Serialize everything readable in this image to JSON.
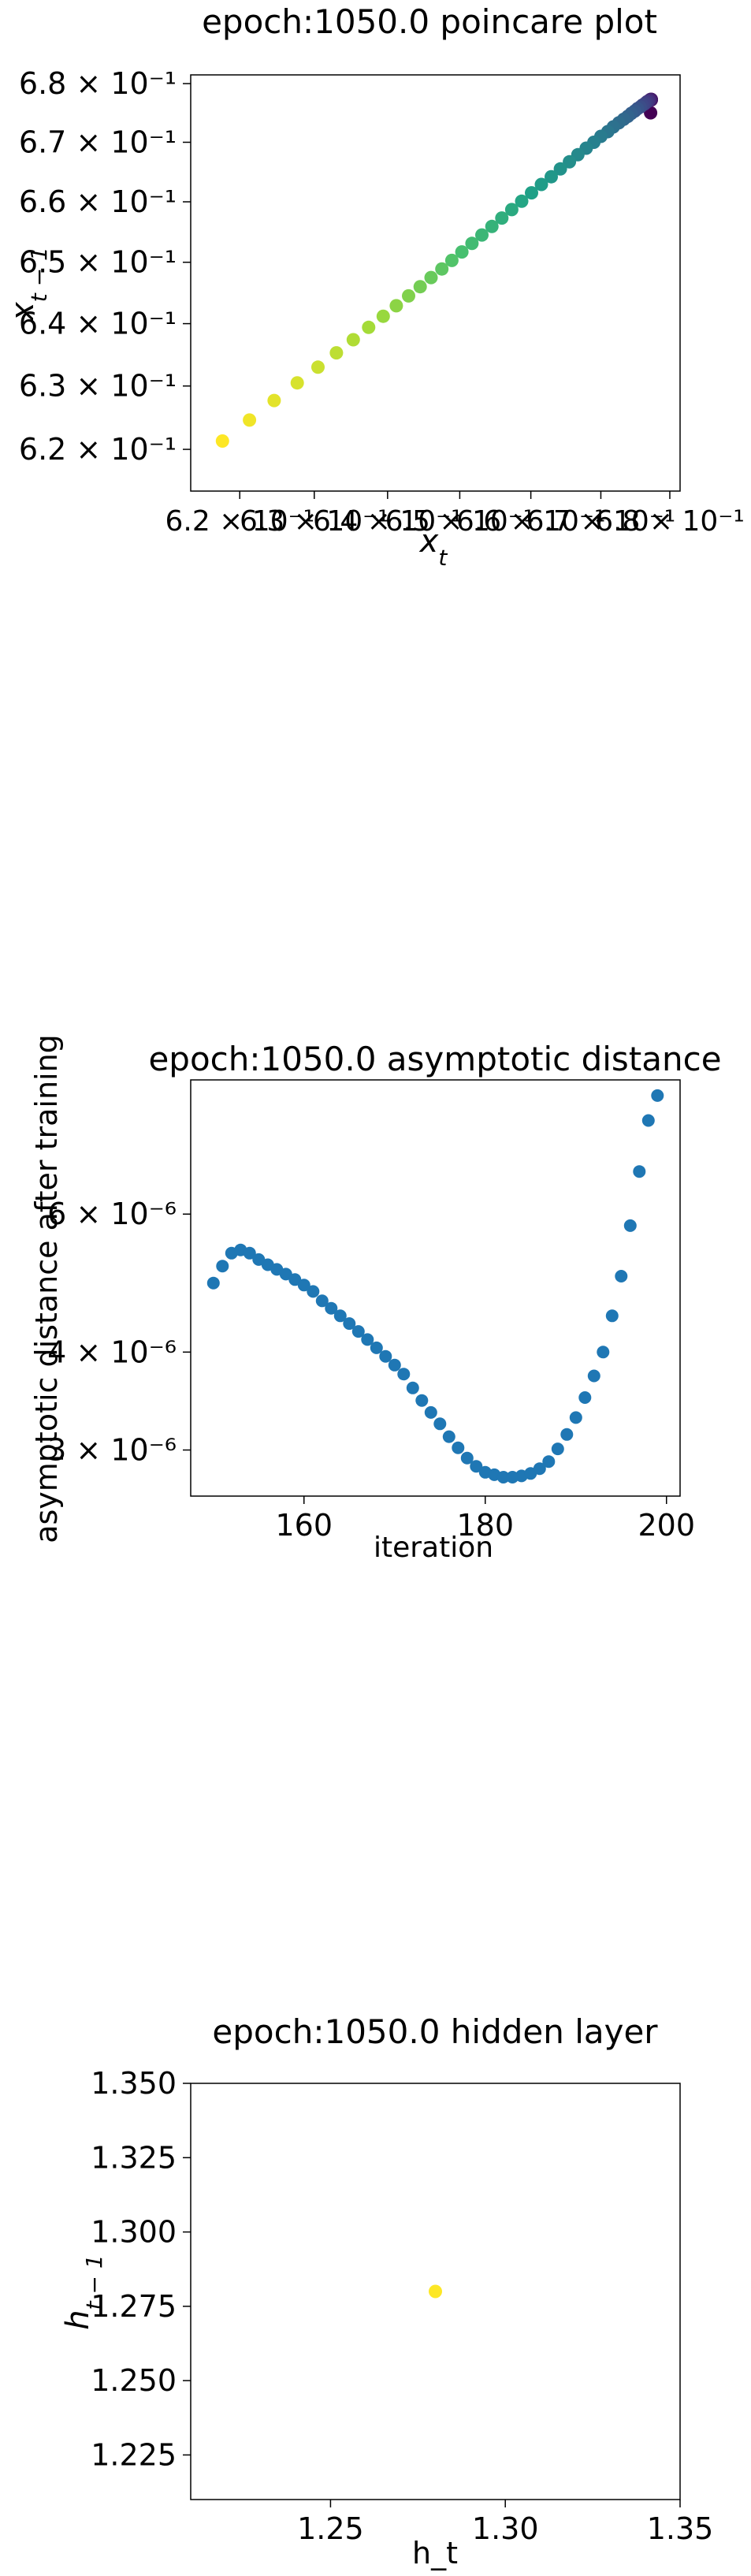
{
  "chart_data": [
    {
      "type": "scatter",
      "title": "epoch:1050.0 poincare plot",
      "xlabel": "x_t",
      "ylabel": "x_{t-1}",
      "xscale": "log",
      "yscale": "log",
      "xlim": [
        0.6135,
        0.6815
      ],
      "ylim": [
        0.6135,
        0.6815
      ],
      "xticks": [
        0.62,
        0.63,
        0.64,
        0.65,
        0.66,
        0.67,
        0.68
      ],
      "xtick_labels": [
        "6.2 × 10⁻¹",
        "6.3 × 10⁻¹",
        "6.4 × 10⁻¹",
        "6.5 × 10⁻¹",
        "6.6 × 10⁻¹",
        "6.7 × 10⁻¹",
        "6.8 × 10⁻¹"
      ],
      "yticks": [
        0.62,
        0.63,
        0.64,
        0.65,
        0.66,
        0.67,
        0.68
      ],
      "ytick_labels": [
        "6.2 × 10⁻¹",
        "6.3 × 10⁻¹",
        "6.4 × 10⁻¹",
        "6.5 × 10⁻¹",
        "6.6 × 10⁻¹",
        "6.7 × 10⁻¹",
        "6.8 × 10⁻¹"
      ],
      "colormap": "viridis",
      "colors": [
        "#440154",
        "#46327e",
        "#365c8d",
        "#277f8e",
        "#1fa187",
        "#4ac16d",
        "#a0da39",
        "#fde725"
      ],
      "x": [
        0.6772,
        0.6773,
        0.6773,
        0.6773,
        0.6772,
        0.6771,
        0.677,
        0.6769,
        0.6767,
        0.6765,
        0.6763,
        0.676,
        0.6757,
        0.6753,
        0.6749,
        0.6744,
        0.6739,
        0.6733,
        0.6726,
        0.6718,
        0.671,
        0.67,
        0.669,
        0.6679,
        0.6667,
        0.6655,
        0.6642,
        0.6629,
        0.6615,
        0.6601,
        0.6587,
        0.6573,
        0.6559,
        0.6545,
        0.6531,
        0.6517,
        0.6503,
        0.6489,
        0.6475,
        0.646,
        0.6445,
        0.6429,
        0.6412,
        0.6394,
        0.6374,
        0.6353,
        0.633,
        0.6305,
        0.6277,
        0.6246,
        0.6213,
        0.6177
      ],
      "y": [
        0.675,
        0.6772,
        0.6773,
        0.6773,
        0.6773,
        0.6772,
        0.6771,
        0.677,
        0.6769,
        0.6767,
        0.6765,
        0.6763,
        0.676,
        0.6757,
        0.6753,
        0.6749,
        0.6744,
        0.6739,
        0.6733,
        0.6726,
        0.6718,
        0.671,
        0.67,
        0.669,
        0.6679,
        0.6667,
        0.6655,
        0.6642,
        0.6629,
        0.6615,
        0.6601,
        0.6587,
        0.6573,
        0.6559,
        0.6545,
        0.6531,
        0.6517,
        0.6503,
        0.6489,
        0.6475,
        0.646,
        0.6445,
        0.6429,
        0.6412,
        0.6394,
        0.6374,
        0.6353,
        0.633,
        0.6305,
        0.6277,
        0.6246,
        0.6213
      ],
      "grid": false
    },
    {
      "type": "scatter",
      "title": "epoch:1050.0 asymptotic distance",
      "xlabel": "iteration",
      "ylabel": "asymptotic distance after training",
      "yscale": "log",
      "xlim": [
        147.5,
        201.5
      ],
      "ylim": [
        2.62e-06,
        8.9e-06
      ],
      "xticks": [
        160,
        180,
        200
      ],
      "xtick_labels": [
        "160",
        "180",
        "200"
      ],
      "yticks": [
        3e-06,
        4e-06,
        6e-06
      ],
      "ytick_labels": [
        "3 × 10⁻⁶",
        "4 × 10⁻⁶",
        "6 × 10⁻⁶"
      ],
      "color": "#1f77b4",
      "x": [
        150,
        151,
        152,
        153,
        154,
        155,
        156,
        157,
        158,
        159,
        160,
        161,
        162,
        163,
        164,
        165,
        166,
        167,
        168,
        169,
        170,
        171,
        172,
        173,
        174,
        175,
        176,
        177,
        178,
        179,
        180,
        181,
        182,
        183,
        184,
        185,
        186,
        187,
        188,
        189,
        190,
        191,
        192,
        193,
        194,
        195,
        196,
        197,
        198,
        199
      ],
      "y": [
        4.9e-06,
        5.15e-06,
        5.35e-06,
        5.4e-06,
        5.35e-06,
        5.25e-06,
        5.17e-06,
        5.1e-06,
        5.03e-06,
        4.95e-06,
        4.87e-06,
        4.78e-06,
        4.65e-06,
        4.55e-06,
        4.45e-06,
        4.35e-06,
        4.25e-06,
        4.15e-06,
        4.05e-06,
        3.95e-06,
        3.85e-06,
        3.75e-06,
        3.6e-06,
        3.47e-06,
        3.35e-06,
        3.24e-06,
        3.12e-06,
        3.02e-06,
        2.93e-06,
        2.86e-06,
        2.81e-06,
        2.79e-06,
        2.77e-06,
        2.77e-06,
        2.78e-06,
        2.8e-06,
        2.84e-06,
        2.9e-06,
        3.01e-06,
        3.14e-06,
        3.3e-06,
        3.5e-06,
        3.73e-06,
        4e-06,
        4.45e-06,
        5e-06,
        5.8e-06,
        6.8e-06,
        7.9e-06,
        8.5e-06
      ],
      "grid": false
    },
    {
      "type": "scatter",
      "title": "epoch:1050.0 hidden layer",
      "xlabel": "h_t",
      "ylabel": "h_{t-1}",
      "xlim": [
        1.21,
        1.35
      ],
      "ylim": [
        1.21,
        1.35
      ],
      "xticks": [
        1.25,
        1.3,
        1.35
      ],
      "xtick_labels": [
        "1.25",
        "1.30",
        "1.35"
      ],
      "yticks": [
        1.225,
        1.25,
        1.275,
        1.3,
        1.325,
        1.35
      ],
      "ytick_labels": [
        "1.225",
        "1.250",
        "1.275",
        "1.300",
        "1.325",
        "1.350"
      ],
      "color": "#fde725",
      "x": [
        1.28
      ],
      "y": [
        1.28
      ],
      "grid": false
    }
  ]
}
